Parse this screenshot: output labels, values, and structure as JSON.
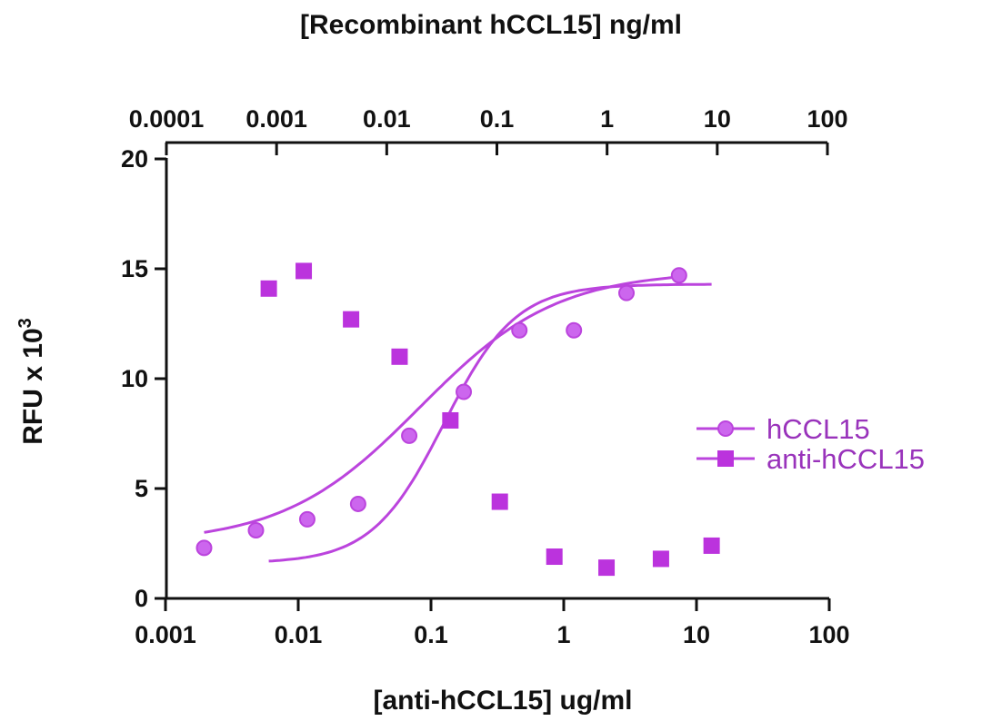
{
  "chart_data": {
    "type": "scatter",
    "title": "",
    "xlabel": "[anti-hCCL15] ug/ml",
    "x2label": "[Recombinant hCCL15] ng/ml",
    "ylabel": "RFU x 10",
    "ylabel_superscript": "3",
    "xscale": "log",
    "x2scale": "log",
    "xlim": [
      0.001,
      100
    ],
    "x2lim": [
      0.0001,
      100
    ],
    "ylim": [
      0,
      20
    ],
    "x_ticks": [
      "0.001",
      "0.01",
      "0.1",
      "1",
      "10",
      "100"
    ],
    "x2_ticks": [
      "0.0001",
      "0.001",
      "0.01",
      "0.1",
      "1",
      "10",
      "100"
    ],
    "y_ticks": [
      "0",
      "5",
      "10",
      "15",
      "20"
    ],
    "grid": false,
    "legend_position": "right",
    "color": "#bb44dd",
    "series": [
      {
        "name": "hCCL15",
        "marker": "circle",
        "axis": "top",
        "points": [
          [
            0.00022,
            2.3
          ],
          [
            0.00065,
            3.1
          ],
          [
            0.0019,
            3.6
          ],
          [
            0.0055,
            4.3
          ],
          [
            0.016,
            7.4
          ],
          [
            0.05,
            9.4
          ],
          [
            0.16,
            12.2
          ],
          [
            0.5,
            12.2
          ],
          [
            1.5,
            13.9
          ],
          [
            4.5,
            14.7
          ]
        ],
        "fit": {
          "bottom": 2.5,
          "top": 14.9,
          "ec50": 0.02,
          "hill": 0.7
        }
      },
      {
        "name": "anti-hCCL15",
        "marker": "square",
        "axis": "bottom",
        "points": [
          [
            0.006,
            14.1
          ],
          [
            0.011,
            14.9
          ],
          [
            0.025,
            12.7
          ],
          [
            0.058,
            11.0
          ],
          [
            0.14,
            8.1
          ],
          [
            0.33,
            4.4
          ],
          [
            0.85,
            1.9
          ],
          [
            2.1,
            1.4
          ],
          [
            5.4,
            1.8
          ],
          [
            13.0,
            2.4
          ]
        ],
        "fit": {
          "bottom": 1.6,
          "top": 14.3,
          "ec50": 0.125,
          "hill": 1.6
        }
      }
    ]
  }
}
